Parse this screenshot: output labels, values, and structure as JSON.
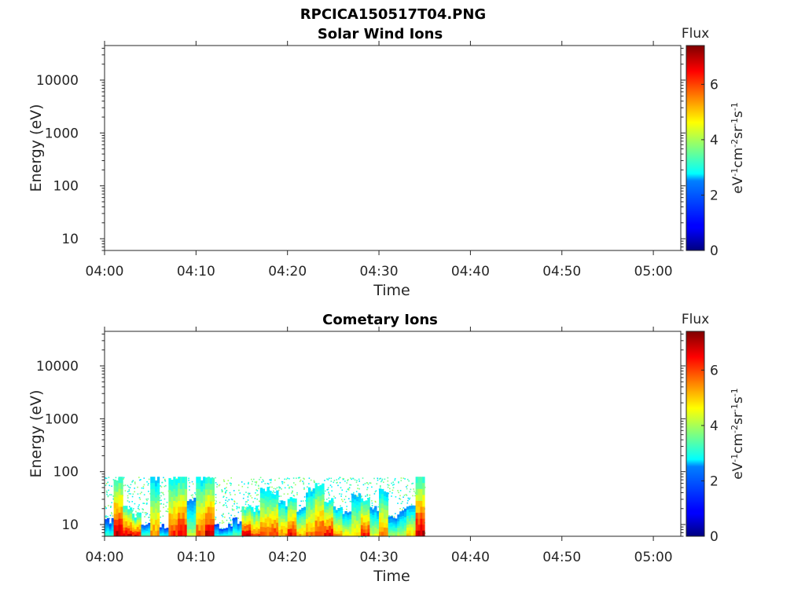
{
  "figure_title": "RPCICA150517T04.PNG",
  "chart_data": [
    {
      "type": "heatmap",
      "title": "Solar Wind Ions",
      "xlabel": "Time",
      "ylabel": "Energy (eV)",
      "x_range": [
        "04:00",
        "05:03"
      ],
      "y_range_eV": [
        6,
        45000
      ],
      "y_scale": "log",
      "x_ticks": [
        "04:00",
        "04:10",
        "04:20",
        "04:30",
        "04:40",
        "04:50",
        "05:00"
      ],
      "y_ticks": [
        "10",
        "100",
        "1000",
        "10000"
      ],
      "colorbar": {
        "title": "Flux",
        "label": "eV-1cm-2sr-1s-1",
        "range": [
          0,
          7.4
        ],
        "ticks": [
          "0",
          "2",
          "4",
          "6"
        ],
        "colormap": "jet"
      },
      "segments": []
    },
    {
      "type": "heatmap",
      "title": "Cometary Ions",
      "xlabel": "Time",
      "ylabel": "Energy (eV)",
      "x_range": [
        "04:00",
        "05:03"
      ],
      "y_range_eV": [
        6,
        45000
      ],
      "y_scale": "log",
      "x_ticks": [
        "04:00",
        "04:10",
        "04:20",
        "04:30",
        "04:40",
        "04:50",
        "05:00"
      ],
      "y_ticks": [
        "10",
        "100",
        "1000",
        "10000"
      ],
      "colorbar": {
        "title": "Flux",
        "label": "eV-1cm-2sr-1s-1",
        "range": [
          0,
          7.4
        ],
        "ticks": [
          "0",
          "2",
          "4",
          "6"
        ],
        "colormap": "jet"
      },
      "data_extent": {
        "t_start": "04:00",
        "t_end": "04:35",
        "e_min_eV": 6,
        "e_max_eV": 80
      },
      "segments": [
        {
          "t0": "04:00",
          "t1": "04:01",
          "peak_flux": 3.2,
          "top_eV": 12
        },
        {
          "t0": "04:01",
          "t1": "04:02",
          "peak_flux": 7.0,
          "top_eV": 80
        },
        {
          "t0": "04:02",
          "t1": "04:03",
          "peak_flux": 6.8,
          "top_eV": 20
        },
        {
          "t0": "04:03",
          "t1": "04:04",
          "peak_flux": 6.5,
          "top_eV": 15
        },
        {
          "t0": "04:04",
          "t1": "04:05",
          "peak_flux": 3.5,
          "top_eV": 10
        },
        {
          "t0": "04:05",
          "t1": "04:06",
          "peak_flux": 5.5,
          "top_eV": 80
        },
        {
          "t0": "04:06",
          "t1": "04:07",
          "peak_flux": 3.0,
          "top_eV": 9
        },
        {
          "t0": "04:07",
          "t1": "04:08",
          "peak_flux": 6.2,
          "top_eV": 80
        },
        {
          "t0": "04:08",
          "t1": "04:09",
          "peak_flux": 6.6,
          "top_eV": 80
        },
        {
          "t0": "04:09",
          "t1": "04:10",
          "peak_flux": 4.2,
          "top_eV": 30
        },
        {
          "t0": "04:10",
          "t1": "04:11",
          "peak_flux": 6.0,
          "top_eV": 80
        },
        {
          "t0": "04:11",
          "t1": "04:12",
          "peak_flux": 6.8,
          "top_eV": 80
        },
        {
          "t0": "04:12",
          "t1": "04:13",
          "peak_flux": 3.0,
          "top_eV": 9
        },
        {
          "t0": "04:13",
          "t1": "04:14",
          "peak_flux": 3.2,
          "top_eV": 9
        },
        {
          "t0": "04:14",
          "t1": "04:15",
          "peak_flux": 3.5,
          "top_eV": 12
        },
        {
          "t0": "04:15",
          "t1": "04:16",
          "peak_flux": 6.8,
          "top_eV": 22
        },
        {
          "t0": "04:16",
          "t1": "04:17",
          "peak_flux": 6.0,
          "top_eV": 20
        },
        {
          "t0": "04:17",
          "t1": "04:18",
          "peak_flux": 5.8,
          "top_eV": 50
        },
        {
          "t0": "04:18",
          "t1": "04:19",
          "peak_flux": 6.2,
          "top_eV": 40
        },
        {
          "t0": "04:19",
          "t1": "04:20",
          "peak_flux": 5.5,
          "top_eV": 25
        },
        {
          "t0": "04:20",
          "t1": "04:21",
          "peak_flux": 6.5,
          "top_eV": 30
        },
        {
          "t0": "04:21",
          "t1": "04:22",
          "peak_flux": 5.2,
          "top_eV": 20
        },
        {
          "t0": "04:22",
          "t1": "04:23",
          "peak_flux": 5.6,
          "top_eV": 45
        },
        {
          "t0": "04:23",
          "t1": "04:24",
          "peak_flux": 6.3,
          "top_eV": 60
        },
        {
          "t0": "04:24",
          "t1": "04:25",
          "peak_flux": 6.6,
          "top_eV": 30
        },
        {
          "t0": "04:25",
          "t1": "04:26",
          "peak_flux": 5.4,
          "top_eV": 20
        },
        {
          "t0": "04:26",
          "t1": "04:27",
          "peak_flux": 4.8,
          "top_eV": 18
        },
        {
          "t0": "04:27",
          "t1": "04:28",
          "peak_flux": 5.0,
          "top_eV": 35
        },
        {
          "t0": "04:28",
          "t1": "04:29",
          "peak_flux": 6.4,
          "top_eV": 28
        },
        {
          "t0": "04:29",
          "t1": "04:30",
          "peak_flux": 4.5,
          "top_eV": 20
        },
        {
          "t0": "04:30",
          "t1": "04:31",
          "peak_flux": 5.6,
          "top_eV": 45
        },
        {
          "t0": "04:31",
          "t1": "04:32",
          "peak_flux": 4.0,
          "top_eV": 15
        },
        {
          "t0": "04:32",
          "t1": "04:33",
          "peak_flux": 4.2,
          "top_eV": 18
        },
        {
          "t0": "04:33",
          "t1": "04:34",
          "peak_flux": 5.0,
          "top_eV": 25
        },
        {
          "t0": "04:34",
          "t1": "04:35",
          "peak_flux": 7.0,
          "top_eV": 80
        }
      ]
    }
  ]
}
